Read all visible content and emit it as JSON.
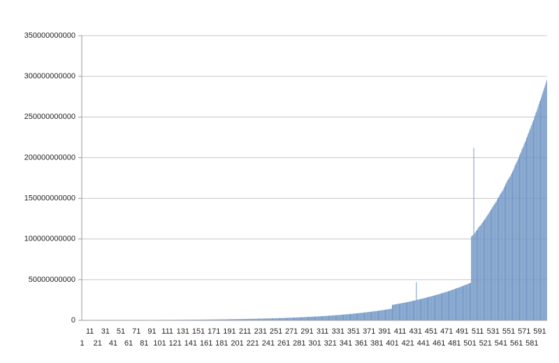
{
  "chart_data": {
    "type": "bar",
    "color": "#6f95c4",
    "grid": true,
    "ylim": [
      0,
      350000000000
    ],
    "yticks": [
      0,
      50000000000,
      100000000000,
      150000000000,
      200000000000,
      250000000000,
      300000000000,
      350000000000
    ],
    "categories": [
      1,
      null,
      null,
      null,
      null,
      null,
      null,
      null,
      null,
      null,
      11,
      null,
      null,
      null,
      null,
      null,
      null,
      null,
      null,
      null,
      21,
      null,
      null,
      null,
      null,
      null,
      null,
      null,
      null,
      null,
      31,
      null,
      null,
      null,
      null,
      null,
      null,
      null,
      null,
      null,
      41,
      null,
      null,
      null,
      null,
      null,
      null,
      null,
      null,
      null,
      51,
      null,
      null,
      null,
      null,
      null,
      null,
      null,
      null,
      null,
      61,
      null,
      null,
      null,
      null,
      null,
      null,
      null,
      null,
      null,
      71,
      null,
      null,
      null,
      null,
      null,
      null,
      null,
      null,
      null,
      81,
      null,
      null,
      null,
      null,
      null,
      null,
      null,
      null,
      null,
      91,
      null,
      null,
      null,
      null,
      null,
      null,
      null,
      null,
      null,
      101,
      null,
      null,
      null,
      null,
      null,
      null,
      null,
      null,
      null,
      111,
      null,
      null,
      null,
      null,
      null,
      null,
      null,
      null,
      null,
      121,
      null,
      null,
      null,
      null,
      null,
      null,
      null,
      null,
      null,
      131,
      null,
      null,
      null,
      null,
      null,
      null,
      null,
      null,
      null,
      141,
      null,
      null,
      null,
      null,
      null,
      null,
      null,
      null,
      null,
      151,
      null,
      null,
      null,
      null,
      null,
      null,
      null,
      null,
      null,
      161,
      null,
      null,
      null,
      null,
      null,
      null,
      null,
      null,
      null,
      171,
      null,
      null,
      null,
      null,
      null,
      null,
      null,
      null,
      null,
      181,
      null,
      null,
      null,
      null,
      null,
      null,
      null,
      null,
      null,
      191,
      null,
      null,
      null,
      null,
      null,
      null,
      null,
      null,
      null,
      201,
      null,
      null,
      null,
      null,
      null,
      null,
      null,
      null,
      null,
      211,
      null,
      null,
      null,
      null,
      null,
      null,
      null,
      null,
      null,
      221,
      null,
      null,
      null,
      null,
      null,
      null,
      null,
      null,
      null,
      231,
      null,
      null,
      null,
      null,
      null,
      null,
      null,
      null,
      null,
      241,
      null,
      null,
      null,
      null,
      null,
      null,
      null,
      null,
      null,
      251,
      null,
      null,
      null,
      null,
      null,
      null,
      null,
      null,
      null,
      261,
      null,
      null,
      null,
      null,
      null,
      null,
      null,
      null,
      null,
      271,
      null,
      null,
      null,
      null,
      null,
      null,
      null,
      null,
      null,
      281,
      null,
      null,
      null,
      null,
      null,
      null,
      null,
      null,
      null,
      291,
      null,
      null,
      null,
      null,
      null,
      null,
      null,
      null,
      null,
      301,
      null,
      null,
      null,
      null,
      null,
      null,
      null,
      null,
      null,
      311,
      null,
      null,
      null,
      null,
      null,
      null,
      null,
      null,
      null,
      321,
      null,
      null,
      null,
      null,
      null,
      null,
      null,
      null,
      null,
      331,
      null,
      null,
      null,
      null,
      null,
      null,
      null,
      null,
      null,
      341,
      null,
      null,
      null,
      null,
      null,
      null,
      null,
      null,
      null,
      351,
      null,
      null,
      null,
      null,
      null,
      null,
      null,
      null,
      null,
      361,
      null,
      null,
      null,
      null,
      null,
      null,
      null,
      null,
      null,
      371,
      null,
      null,
      null,
      null,
      null,
      null,
      null,
      null,
      null,
      381,
      null,
      null,
      null,
      null,
      null,
      null,
      null,
      null,
      null,
      391,
      null,
      null,
      null,
      null,
      null,
      null,
      null,
      null,
      null,
      401,
      null,
      null,
      null,
      null,
      null,
      null,
      null,
      null,
      null,
      411,
      null,
      null,
      null,
      null,
      null,
      null,
      null,
      null,
      null,
      421,
      null,
      null,
      null,
      null,
      null,
      null,
      null,
      null,
      null,
      431,
      null,
      null,
      null,
      null,
      null,
      null,
      null,
      null,
      null,
      441,
      null,
      null,
      null,
      null,
      null,
      null,
      null,
      null,
      null,
      451,
      null,
      null,
      null,
      null,
      null,
      null,
      null,
      null,
      null,
      461,
      null,
      null,
      null,
      null,
      null,
      null,
      null,
      null,
      null,
      471,
      null,
      null,
      null,
      null,
      null,
      null,
      null,
      null,
      null,
      481,
      null,
      null,
      null,
      null,
      null,
      null,
      null,
      null,
      null,
      491,
      null,
      null,
      null,
      null,
      null,
      null,
      null,
      null,
      null,
      501,
      null,
      null,
      null,
      null,
      null,
      null,
      null,
      null,
      null,
      511,
      null,
      null,
      null,
      null,
      null,
      null,
      null,
      null,
      null,
      521,
      null,
      null,
      null,
      null,
      null,
      null,
      null,
      null,
      null,
      531,
      null,
      null,
      null,
      null,
      null,
      null,
      null,
      null,
      null,
      541,
      null,
      null,
      null,
      null,
      null,
      null,
      null,
      null,
      null,
      551,
      null,
      null,
      null,
      null,
      null,
      null,
      null,
      null,
      null,
      561,
      null,
      null,
      null,
      null,
      null,
      null,
      null,
      null,
      null,
      571,
      null,
      null,
      null,
      null,
      null,
      null,
      null,
      null,
      null,
      581,
      null,
      null,
      null,
      null,
      null,
      null,
      null,
      null,
      null,
      591,
      null,
      null,
      null,
      null,
      null,
      null,
      null,
      null,
      null
    ],
    "values": [
      150000000.0,
      150000000.0,
      150000000.0,
      160000000.0,
      160000000.0,
      160000000.0,
      160000000.0,
      160000000.0,
      170000000.0,
      170000000.0,
      170000000.0,
      170000000.0,
      170000000.0,
      180000000.0,
      180000000.0,
      180000000.0,
      180000000.0,
      180000000.0,
      190000000.0,
      190000000.0,
      190000000.0,
      190000000.0,
      190000000.0,
      200000000.0,
      200000000.0,
      200000000.0,
      200000000.0,
      200000000.0,
      210000000.0,
      210000000.0,
      210000000.0,
      210000000.0,
      220000000.0,
      220000000.0,
      220000000.0,
      230000000.0,
      230000000.0,
      230000000.0,
      230000000.0,
      240000000.0,
      240000000.0,
      240000000.0,
      250000000.0,
      250000000.0,
      250000000.0,
      260000000.0,
      260000000.0,
      260000000.0,
      260000000.0,
      270000000.0,
      270000000.0,
      270000000.0,
      280000000.0,
      280000000.0,
      280000000.0,
      290000000.0,
      290000000.0,
      290000000.0,
      290000000.0,
      300000000.0,
      300000000.0,
      300000000.0,
      310000000.0,
      310000000.0,
      310000000.0,
      320000000.0,
      320000000.0,
      320000000.0,
      320000000.0,
      330000000.0,
      330000000.0,
      330000000.0,
      340000000.0,
      340000000.0,
      350000000.0,
      350000000.0,
      350000000.0,
      360000000.0,
      360000000.0,
      370000000.0,
      370000000.0,
      380000000.0,
      380000000.0,
      390000000.0,
      390000000.0,
      400000000.0,
      400000000.0,
      410000000.0,
      410000000.0,
      420000000.0,
      420000000.0,
      430000000.0,
      430000000.0,
      440000000.0,
      440000000.0,
      450000000.0,
      450000000.0,
      460000000.0,
      460000000.0,
      470000000.0,
      470000000.0,
      480000000.0,
      480000000.0,
      490000000.0,
      490000000.0,
      500000000.0,
      510000000.0,
      510000000.0,
      520000000.0,
      520000000.0,
      530000000.0,
      540000000.0,
      540000000.0,
      550000000.0,
      550000000.0,
      560000000.0,
      570000000.0,
      570000000.0,
      580000000.0,
      580000000.0,
      590000000.0,
      600000000.0,
      600000000.0,
      610000000.0,
      620000000.0,
      630000000.0,
      630000000.0,
      640000000.0,
      650000000.0,
      650000000.0,
      660000000.0,
      670000000.0,
      680000000.0,
      690000000.0,
      690000000.0,
      700000000.0,
      710000000.0,
      720000000.0,
      730000000.0,
      730000000.0,
      740000000.0,
      750000000.0,
      760000000.0,
      770000000.0,
      780000000.0,
      790000000.0,
      800000000.0,
      800000000.0,
      810000000.0,
      820000000.0,
      830000000.0,
      840000000.0,
      850000000.0,
      860000000.0,
      870000000.0,
      880000000.0,
      890000000.0,
      900000000.0,
      910000000.0,
      920000000.0,
      930000000.0,
      940000000.0,
      950000000.0,
      960000000.0,
      970000000.0,
      990000000.0,
      1000000000.0,
      1010000000.0,
      1020000000.0,
      1030000000.0,
      1040000000.0,
      1050000000.0,
      1070000000.0,
      1080000000.0,
      1090000000.0,
      1110000000.0,
      1120000000.0,
      1130000000.0,
      1140000000.0,
      1160000000.0,
      1170000000.0,
      1180000000.0,
      1200000000.0,
      1210000000.0,
      1230000000.0,
      1240000000.0,
      1250000000.0,
      1270000000.0,
      1280000000.0,
      1300000000.0,
      1310000000.0,
      1330000000.0,
      1340000000.0,
      1360000000.0,
      1370000000.0,
      1390000000.0,
      1410000000.0,
      1420000000.0,
      1440000000.0,
      1450000000.0,
      1470000000.0,
      1490000000.0,
      1510000000.0,
      1520000000.0,
      1540000000.0,
      1560000000.0,
      1580000000.0,
      1600000000.0,
      1610000000.0,
      1630000000.0,
      1650000000.0,
      1670000000.0,
      1690000000.0,
      1710000000.0,
      1730000000.0,
      1750000000.0,
      1770000000.0,
      1790000000.0,
      1810000000.0,
      1830000000.0,
      1850000000.0,
      1870000000.0,
      1890000000.0,
      1920000000.0,
      1940000000.0,
      1960000000.0,
      1980000000.0,
      2000000000.0,
      2030000000.0,
      2050000000.0,
      2070000000.0,
      2100000000.0,
      2120000000.0,
      2150000000.0,
      2170000000.0,
      2200000000.0,
      2220000000.0,
      2250000000.0,
      2270000000.0,
      2300000000.0,
      2320000000.0,
      2350000000.0,
      2380000000.0,
      2400000000.0,
      2430000000.0,
      2460000000.0,
      2490000000.0,
      2520000000.0,
      2540000000.0,
      2570000000.0,
      2600000000.0,
      2630000000.0,
      2660000000.0,
      2700000000.0,
      2730000000.0,
      2760000000.0,
      2790000000.0,
      2820000000.0,
      2860000000.0,
      2890000000.0,
      2920000000.0,
      2960000000.0,
      2990000000.0,
      3030000000.0,
      3060000000.0,
      3100000000.0,
      3130000000.0,
      3170000000.0,
      3200000000.0,
      3240000000.0,
      3270000000.0,
      3310000000.0,
      3350000000.0,
      3390000000.0,
      3430000000.0,
      3470000000.0,
      3510000000.0,
      3550000000.0,
      3590000000.0,
      3630000000.0,
      3670000000.0,
      3710000000.0,
      3760000000.0,
      3800000000.0,
      3850000000.0,
      3890000000.0,
      3930000000.0,
      3980000000.0,
      4020000000.0,
      4070000000.0,
      4110000000.0,
      4160000000.0,
      4210000000.0,
      4260000000.0,
      4310000000.0,
      4360000000.0,
      4410000000.0,
      4460000000.0,
      4510000000.0,
      4560000000.0,
      4610000000.0,
      4670000000.0,
      4720000000.0,
      4780000000.0,
      4830000000.0,
      4890000000.0,
      4950000000.0,
      5000000000.0,
      5060000000.0,
      5110000000.0,
      5170000000.0,
      5230000000.0,
      5300000000.0,
      5360000000.0,
      5420000000.0,
      5490000000.0,
      5550000000.0,
      5610000000.0,
      5670000000.0,
      5740000000.0,
      5800000000.0,
      5870000000.0,
      5940000000.0,
      6010000000.0,
      6080000000.0,
      6150000000.0,
      6220000000.0,
      6290000000.0,
      6360000000.0,
      6430000000.0,
      6500000000.0,
      6580000000.0,
      6660000000.0,
      6740000000.0,
      6820000000.0,
      6900000000.0,
      6980000000.0,
      7060000000.0,
      7140000000.0,
      7220000000.0,
      7300000000.0,
      7390000000.0,
      7480000000.0,
      7570000000.0,
      7660000000.0,
      7750000000.0,
      7840000000.0,
      7930000000.0,
      8020000000.0,
      8110000000.0,
      8200000000.0,
      8300000000.0,
      8400000000.0,
      8500000000.0,
      8600000000.0,
      8700000000.0,
      8800000000.0,
      8900000000.0,
      9000000000.0,
      9100000000.0,
      9200000000.0,
      9310000000.0,
      9420000000.0,
      9530000000.0,
      9640000000.0,
      9750000000.0,
      9860000000.0,
      9970000000.0,
      10080000000.0,
      10190000000.0,
      10300000000.0,
      10420000000.0,
      10540000000.0,
      10660000000.0,
      10780000000.0,
      10900000000.0,
      11020000000.0,
      11140000000.0,
      11260000000.0,
      11380000000.0,
      11500000000.0,
      11640000000.0,
      11780000000.0,
      11920000000.0,
      12060000000.0,
      12200000000.0,
      12340000000.0,
      12480000000.0,
      12620000000.0,
      12760000000.0,
      12900000000.0,
      13100000000.0,
      13200000000.0,
      13400000000.0,
      13500000000.0,
      13700000000.0,
      13900000000.0,
      14000000000.0,
      14200000000.0,
      14300000000.0,
      19000000000.0,
      19200000000.0,
      19300000000.0,
      19500000000.0,
      19700000000.0,
      19900000000.0,
      20000000000.0,
      20200000000.0,
      20400000000.0,
      20500000000.0,
      20700000000.0,
      20900000000.0,
      21100000000.0,
      21300000000.0,
      21500000000.0,
      21700000000.0,
      21800000000.0,
      22000000000.0,
      22200000000.0,
      22400000000.0,
      22600000000.0,
      22800000000.0,
      23000000000.0,
      23200000000.0,
      23400000000.0,
      23700000000.0,
      23900000000.0,
      24100000000.0,
      24300000000.0,
      24500000000.0,
      24700000000.0,
      47000000000.0,
      25200000000.0,
      25400000000.0,
      25600000000.0,
      25900000000.0,
      26100000000.0,
      26300000000.0,
      26600000000.0,
      26800000000.0,
      27000000000.0,
      27300000000.0,
      27500000000.0,
      27800000000.0,
      28000000000.0,
      28300000000.0,
      28500000000.0,
      28800000000.0,
      29000000000.0,
      29300000000.0,
      29500000000.0,
      29800000000.0,
      30000000000.0,
      30300000000.0,
      30600000000.0,
      30900000000.0,
      31100000000.0,
      31400000000.0,
      31700000000.0,
      31900000000.0,
      32200000000.0,
      32500000000.0,
      32800000000.0,
      33100000000.0,
      33400000000.0,
      33700000000.0,
      33900000000.0,
      34200000000.0,
      34500000000.0,
      34800000000.0,
      35100000000.0,
      35400000000.0,
      35800000000.0,
      36100000000.0,
      36400000000.0,
      36800000000.0,
      37100000000.0,
      37400000000.0,
      37700000000.0,
      38100000000.0,
      38400000000.0,
      38800000000.0,
      39100000000.0,
      39500000000.0,
      39800000000.0,
      40200000000.0,
      40500000000.0,
      40900000000.0,
      41200000000.0,
      41600000000.0,
      41900000000.0,
      42300000000.0,
      42700000000.0,
      43100000000.0,
      43500000000.0,
      43900000000.0,
      44200000000.0,
      44600000000.0,
      45000000000.0,
      45400000000.0,
      45800000000.0,
      46200000000.0,
      103000000000.0,
      104000000000.0,
      105000000000.0,
      212000000000.0,
      107000000000.0,
      108000000000.0,
      110000000000.0,
      111000000000.0,
      112000000000.0,
      114000000000.0,
      115000000000.0,
      116000000000.0,
      117000000000.0,
      119000000000.0,
      120000000000.0,
      121000000000.0,
      123000000000.0,
      124000000000.0,
      125000000000.0,
      127000000000.0,
      128000000000.0,
      130000000000.0,
      131000000000.0,
      133000000000.0,
      134000000000.0,
      136000000000.0,
      137000000000.0,
      139000000000.0,
      140000000000.0,
      142000000000.0,
      143000000000.0,
      145000000000.0,
      146000000000.0,
      148000000000.0,
      150000000000.0,
      151000000000.0,
      153000000000.0,
      155000000000.0,
      156000000000.0,
      158000000000.0,
      159000000000.0,
      161000000000.0,
      163000000000.0,
      165000000000.0,
      167000000000.0,
      169000000000.0,
      171000000000.0,
      173000000000.0,
      174000000000.0,
      176000000000.0,
      177000000000.0,
      179000000000.0,
      181000000000.0,
      183000000000.0,
      185000000000.0,
      187000000000.0,
      190000000000.0,
      192000000000.0,
      194000000000.0,
      196000000000.0,
      198000000000.0,
      200000000000.0,
      203000000000.0,
      205000000000.0,
      207000000000.0,
      210000000000.0,
      212000000000.0,
      214000000000.0,
      217000000000.0,
      219000000000.0,
      221000000000.0,
      224000000000.0,
      226000000000.0,
      229000000000.0,
      231000000000.0,
      234000000000.0,
      236000000000.0,
      239000000000.0,
      241000000000.0,
      244000000000.0,
      246000000000.0,
      249000000000.0,
      252000000000.0,
      255000000000.0,
      257000000000.0,
      260000000000.0,
      263000000000.0,
      266000000000.0,
      269000000000.0,
      271000000000.0,
      274000000000.0,
      277000000000.0,
      280000000000.0,
      283000000000.0,
      286000000000.0,
      289000000000.0,
      292000000000.0,
      295000000000.0
    ]
  }
}
